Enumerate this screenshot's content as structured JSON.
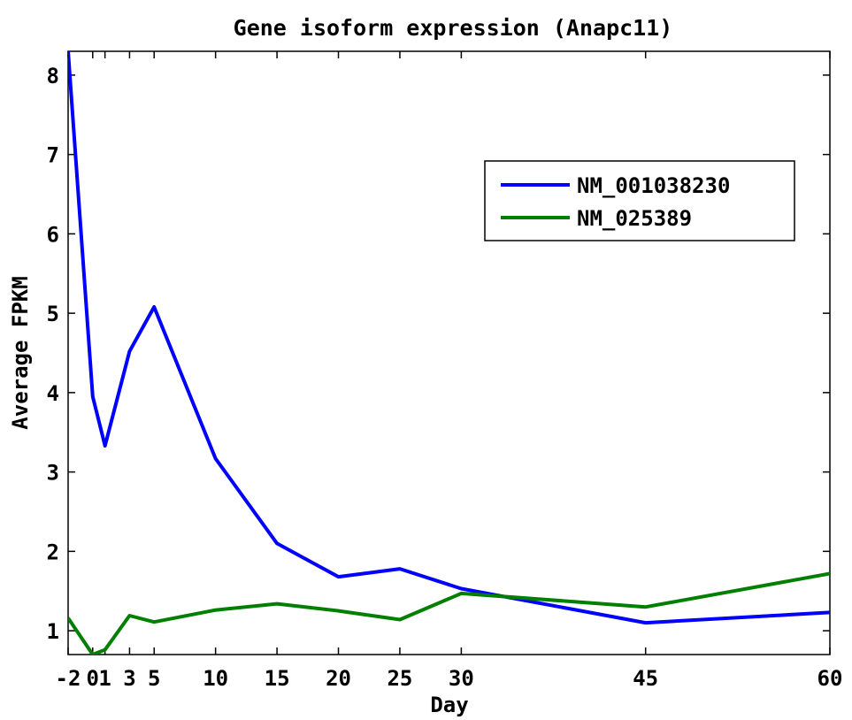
{
  "chart_data": {
    "type": "line",
    "title": "Gene isoform expression (Anapc11)",
    "xlabel": "Day",
    "ylabel": "Average FPKM",
    "x": [
      -2,
      0,
      1,
      3,
      5,
      10,
      15,
      20,
      25,
      30,
      45,
      60
    ],
    "x_ticks": [
      -2,
      0,
      1,
      3,
      5,
      10,
      15,
      20,
      25,
      30,
      45,
      60
    ],
    "x_tick_labels": [
      "-2",
      "0",
      "1",
      "3",
      "5",
      "10",
      "15",
      "20",
      "25",
      "30",
      "45",
      "60"
    ],
    "y_ticks": [
      1,
      2,
      3,
      4,
      5,
      6,
      7,
      8
    ],
    "y_tick_labels": [
      "1",
      "2",
      "3",
      "4",
      "5",
      "6",
      "7",
      "8"
    ],
    "xlim": [
      -2,
      60
    ],
    "ylim": [
      0.7,
      8.3
    ],
    "grid": false,
    "legend_position": "top-right",
    "series": [
      {
        "name": "NM_001038230",
        "color": "#0000ff",
        "values": [
          8.3,
          3.95,
          3.33,
          4.52,
          5.08,
          3.17,
          2.1,
          1.68,
          1.78,
          1.53,
          1.1,
          1.23
        ]
      },
      {
        "name": "NM_025389",
        "color": "#007f00",
        "values": [
          1.16,
          0.7,
          0.76,
          1.19,
          1.11,
          1.26,
          1.34,
          1.25,
          1.14,
          1.47,
          1.3,
          1.72
        ]
      }
    ]
  }
}
